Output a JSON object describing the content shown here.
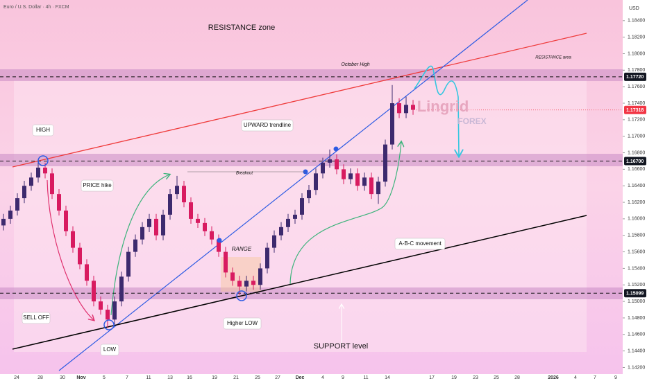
{
  "chart_data": {
    "type": "candlestick",
    "title": "Euro / U.S. Dollar · 4h · FXCM",
    "currency": "USD",
    "up_color": "#3d2a6e",
    "down_color": "#d81b60",
    "ylim": [
      1.1412,
      1.1865
    ],
    "yticks": [
      {
        "value": 1.184,
        "label": "1.18400"
      },
      {
        "value": 1.182,
        "label": "1.18200"
      },
      {
        "value": 1.18,
        "label": "1.18000"
      },
      {
        "value": 1.178,
        "label": "1.17800"
      },
      {
        "value": 1.176,
        "label": "1.17600"
      },
      {
        "value": 1.174,
        "label": "1.17400"
      },
      {
        "value": 1.172,
        "label": "1.17200"
      },
      {
        "value": 1.17,
        "label": "1.17000"
      },
      {
        "value": 1.168,
        "label": "1.16800"
      },
      {
        "value": 1.166,
        "label": "1.16600"
      },
      {
        "value": 1.164,
        "label": "1.16400"
      },
      {
        "value": 1.162,
        "label": "1.16200"
      },
      {
        "value": 1.16,
        "label": "1.16000"
      },
      {
        "value": 1.158,
        "label": "1.15800"
      },
      {
        "value": 1.156,
        "label": "1.15600"
      },
      {
        "value": 1.154,
        "label": "1.15400"
      },
      {
        "value": 1.152,
        "label": "1.15200"
      },
      {
        "value": 1.15,
        "label": "1.15000"
      },
      {
        "value": 1.148,
        "label": "1.14800"
      },
      {
        "value": 1.146,
        "label": "1.14600"
      },
      {
        "value": 1.144,
        "label": "1.14400"
      },
      {
        "value": 1.142,
        "label": "1.14200"
      }
    ],
    "levels": [
      {
        "value": 1.1772,
        "label": "1.17720",
        "color": "#131722"
      },
      {
        "value": 1.17318,
        "label": "1.17318",
        "color": "#f23645"
      },
      {
        "value": 1.167,
        "label": "1.16700",
        "color": "#131722"
      },
      {
        "value": 1.15099,
        "label": "1.15099",
        "color": "#131722"
      }
    ],
    "date_ticks": [
      "24",
      "28",
      "30",
      "Nov",
      "5",
      "7",
      "11",
      "13",
      "16",
      "19",
      "21",
      "25",
      "27",
      "Dec",
      "4",
      "9",
      "11",
      "14",
      "17",
      "19",
      "23",
      "25",
      "28",
      "2026",
      "4",
      "7",
      "9"
    ],
    "open": [
      1.1592,
      1.16,
      1.161,
      1.1625,
      1.164,
      1.165,
      1.1662,
      1.1655,
      1.163,
      1.161,
      1.1585,
      1.1565,
      1.1545,
      1.1525,
      1.15,
      1.149,
      1.1478,
      1.15,
      1.153,
      1.156,
      1.1575,
      1.159,
      1.16,
      1.158,
      1.1605,
      1.163,
      1.164,
      1.162,
      1.16,
      1.1595,
      1.1585,
      1.1575,
      1.156,
      1.1535,
      1.1525,
      1.1518,
      1.1525,
      1.152,
      1.154,
      1.1565,
      1.158,
      1.159,
      1.16,
      1.1605,
      1.1625,
      1.1635,
      1.1655,
      1.1668,
      1.1672,
      1.166,
      1.1648,
      1.1655,
      1.164,
      1.165,
      1.163,
      1.1645,
      1.169,
      1.174,
      1.1728,
      1.1738
    ],
    "high": [
      1.1606,
      1.1616,
      1.1631,
      1.1646,
      1.1656,
      1.1672,
      1.1668,
      1.1661,
      1.1636,
      1.1616,
      1.1591,
      1.1571,
      1.1551,
      1.1531,
      1.1506,
      1.1496,
      1.1506,
      1.1536,
      1.1566,
      1.1581,
      1.1596,
      1.1606,
      1.1606,
      1.1611,
      1.1636,
      1.1652,
      1.1646,
      1.1626,
      1.1606,
      1.1601,
      1.1591,
      1.1581,
      1.1566,
      1.1541,
      1.1531,
      1.1531,
      1.1531,
      1.1546,
      1.1571,
      1.1586,
      1.1596,
      1.1606,
      1.1611,
      1.1631,
      1.1641,
      1.1661,
      1.1674,
      1.1684,
      1.1678,
      1.1666,
      1.1661,
      1.1661,
      1.1656,
      1.1656,
      1.1651,
      1.1696,
      1.1762,
      1.1746,
      1.1748,
      1.1744
    ],
    "low": [
      1.1586,
      1.1594,
      1.1604,
      1.1619,
      1.1634,
      1.1644,
      1.1649,
      1.1624,
      1.1604,
      1.1579,
      1.1559,
      1.1539,
      1.1519,
      1.1494,
      1.1484,
      1.1468,
      1.1472,
      1.1494,
      1.1524,
      1.1554,
      1.1569,
      1.1584,
      1.1574,
      1.1574,
      1.1599,
      1.1624,
      1.1614,
      1.1594,
      1.1589,
      1.1579,
      1.1569,
      1.1554,
      1.1529,
      1.1519,
      1.1508,
      1.1512,
      1.1514,
      1.1514,
      1.1534,
      1.1559,
      1.1574,
      1.1584,
      1.1594,
      1.1599,
      1.1619,
      1.1629,
      1.1649,
      1.1662,
      1.1654,
      1.1642,
      1.1642,
      1.1634,
      1.1634,
      1.1624,
      1.1618,
      1.1639,
      1.1684,
      1.1722,
      1.1722,
      1.1726
    ],
    "close": [
      1.16,
      1.161,
      1.1625,
      1.164,
      1.165,
      1.1662,
      1.1655,
      1.163,
      1.161,
      1.1585,
      1.1565,
      1.1545,
      1.1525,
      1.15,
      1.149,
      1.1478,
      1.15,
      1.153,
      1.156,
      1.1575,
      1.159,
      1.16,
      1.158,
      1.1605,
      1.163,
      1.164,
      1.162,
      1.16,
      1.1595,
      1.1585,
      1.1575,
      1.156,
      1.1535,
      1.1525,
      1.1518,
      1.1525,
      1.152,
      1.154,
      1.1565,
      1.158,
      1.159,
      1.16,
      1.1605,
      1.1625,
      1.1635,
      1.1655,
      1.1668,
      1.1672,
      1.166,
      1.1648,
      1.1655,
      1.164,
      1.165,
      1.163,
      1.1645,
      1.169,
      1.174,
      1.1728,
      1.1738,
      1.1732
    ],
    "annotations": {
      "resistance_zone": "RESISTANCE zone",
      "october_high": "October High",
      "resistance_area": "RESISTANCE area",
      "high": "HIGH",
      "price_hike": "PRICE hike",
      "sell_off": "SELL OFF",
      "low": "LOW",
      "higher_low": "Higher LOW",
      "range": "RANGE",
      "breakout": "Breakout",
      "upward_trendline": "UPWARD trendline",
      "abc": "A-B-C movement",
      "support_level": "SUPPORT level",
      "brand": "Lingrid",
      "brand_sub": "FOREX"
    }
  }
}
